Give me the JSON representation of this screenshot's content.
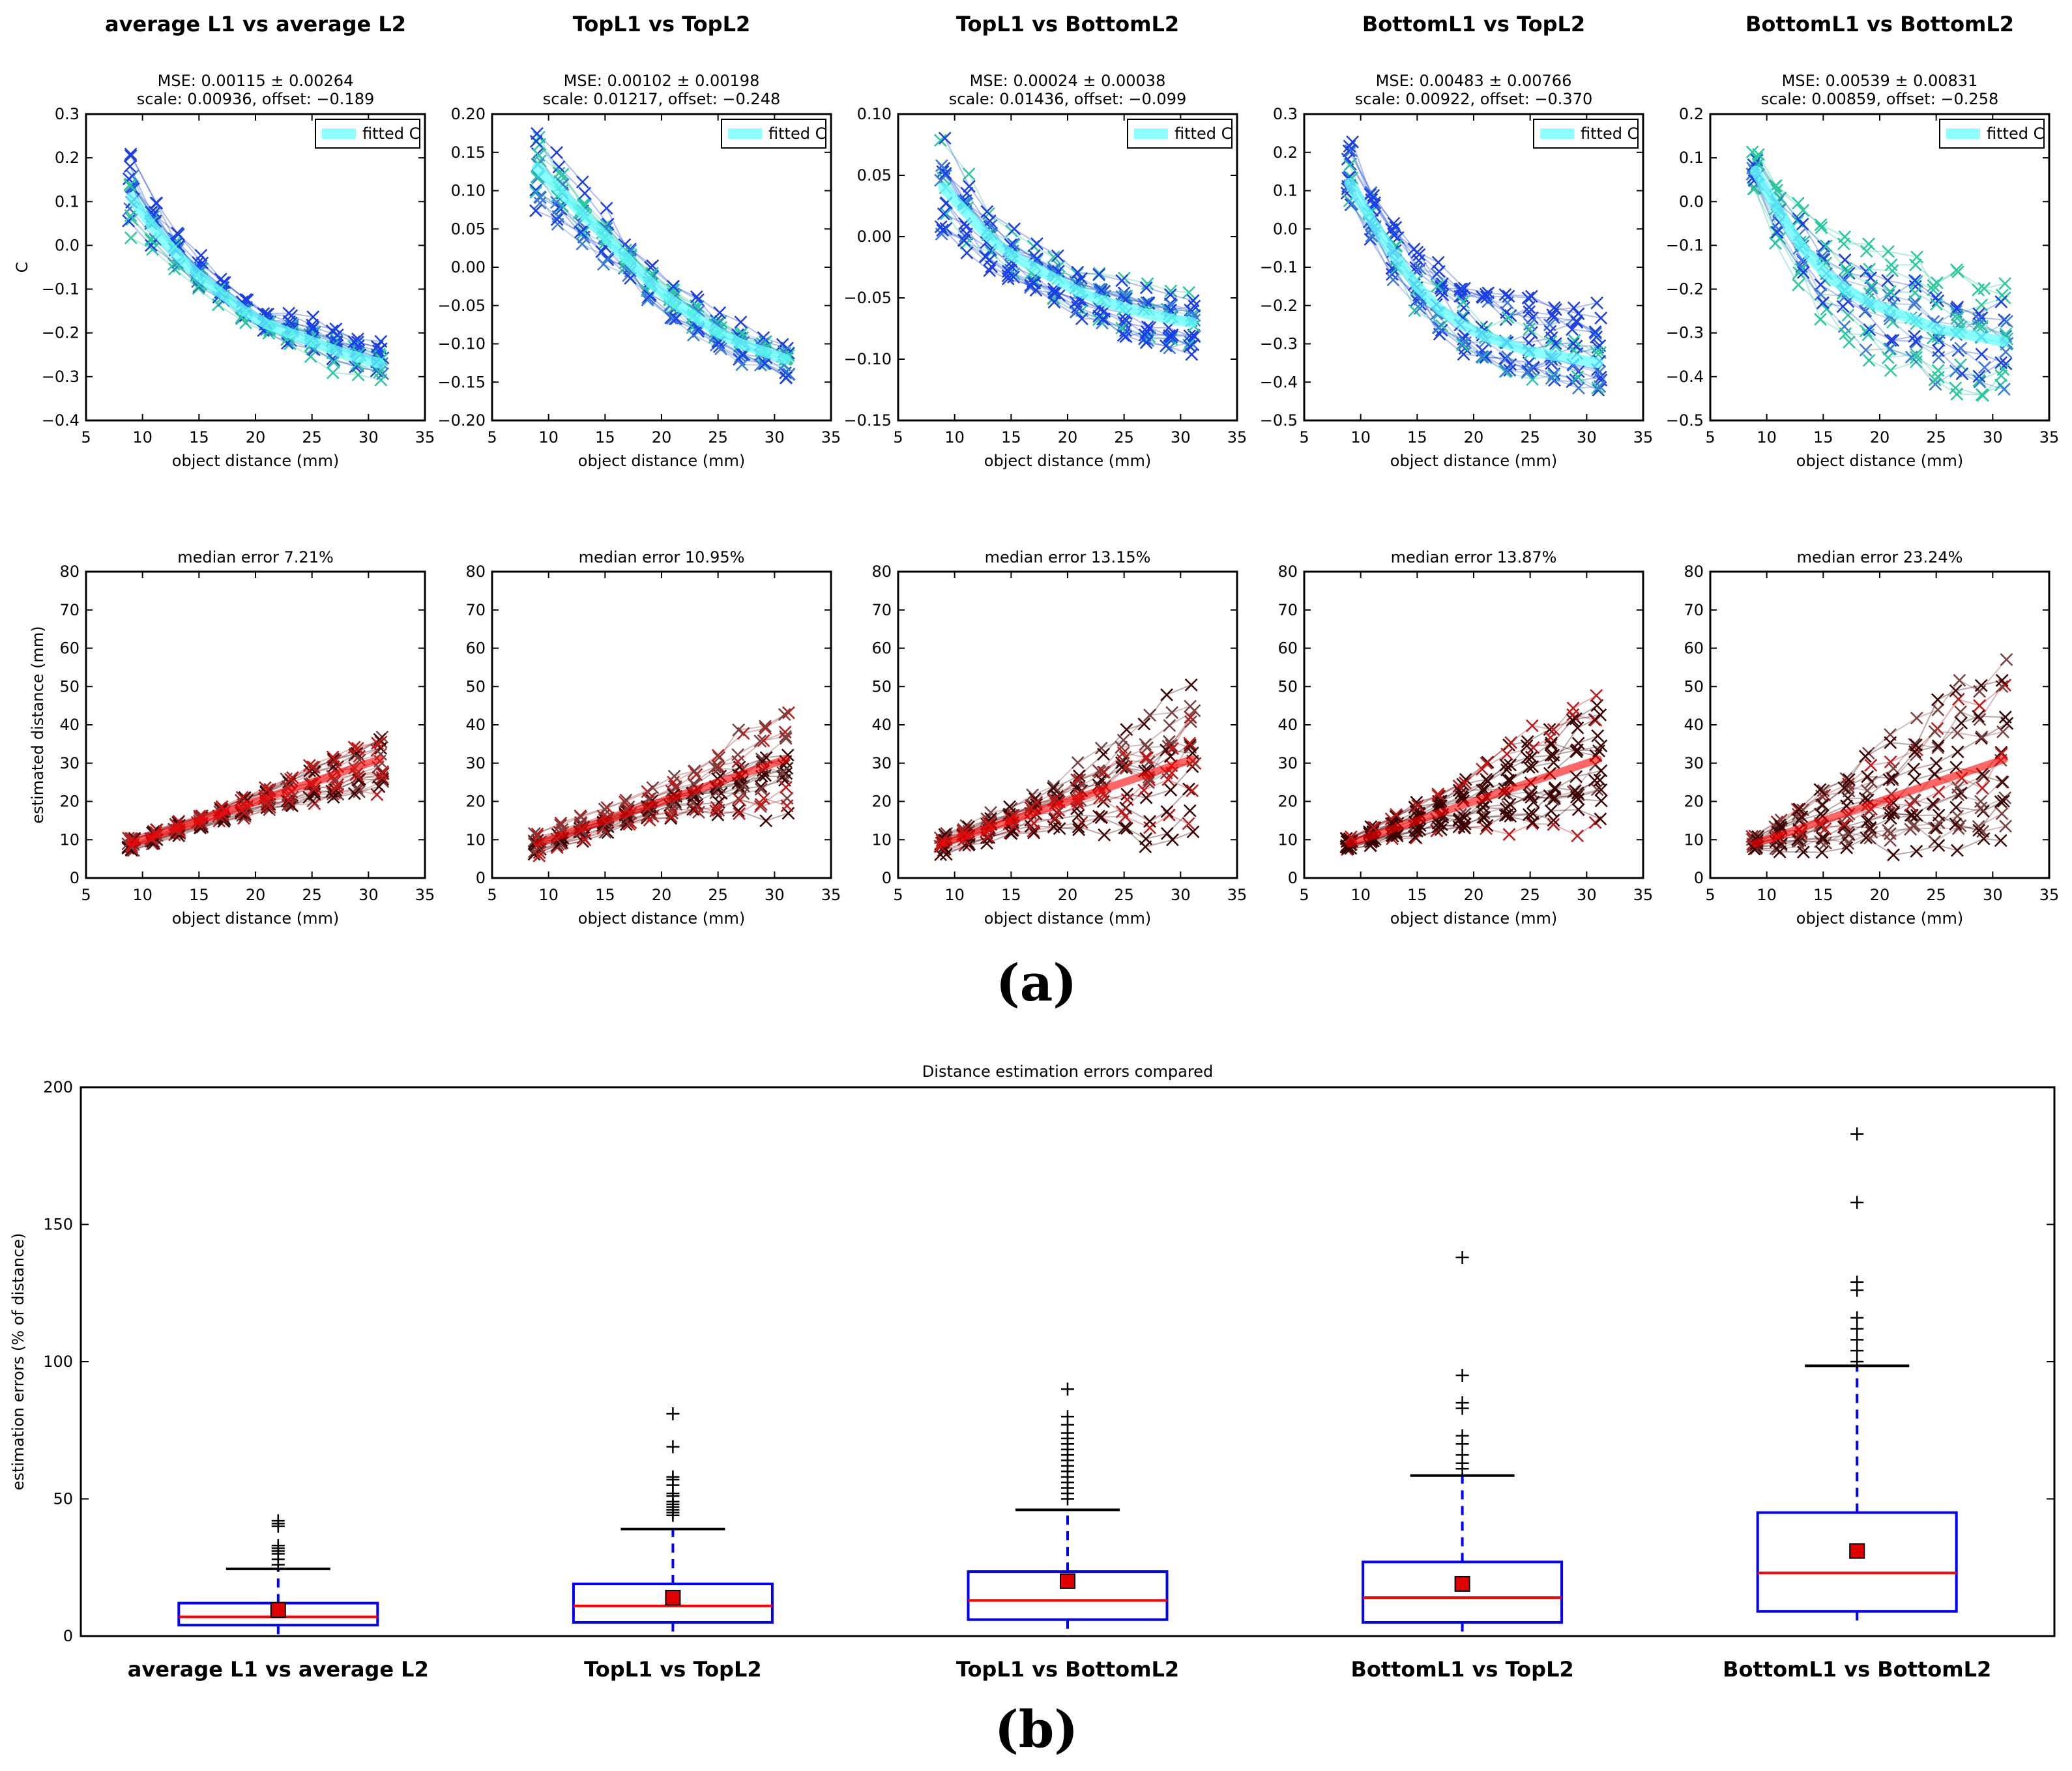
{
  "figure": {
    "panel_a_label": "(a)",
    "panel_b_label": "(b)",
    "colors": {
      "c_fit": "#66ffff",
      "blue_marker": "#1a3fe6",
      "green_marker": "#1ad98c",
      "red_line": "#ff0000",
      "dark_marker": "#3a0000",
      "box_blue": "#0000ff"
    }
  },
  "chart_data": [
    {
      "id": "c1",
      "type": "line",
      "title": "average L1 vs average L2",
      "stats": "MSE: 0.00115 ± 0.00264",
      "fit_params": "scale: 0.00936, offset: −0.189",
      "xlabel": "object distance (mm)",
      "ylabel": "C",
      "legend": "fitted C",
      "xlim": [
        5,
        35
      ],
      "ylim": [
        -0.4,
        0.3
      ],
      "xticks": [
        "5",
        "10",
        "15",
        "20",
        "25",
        "30",
        "35"
      ],
      "yticks": [
        "−0.4",
        "−0.3",
        "−0.2",
        "−0.1",
        "0.0",
        "0.1",
        "0.2",
        "0.3"
      ],
      "x": [
        9,
        11,
        13,
        15,
        17,
        19,
        21,
        23,
        25,
        27,
        29,
        31
      ],
      "fit": [
        0.11,
        0.04,
        -0.02,
        -0.07,
        -0.11,
        -0.15,
        -0.18,
        -0.2,
        -0.22,
        -0.24,
        -0.255,
        -0.27
      ],
      "spread": [
        0.1,
        0.07,
        0.05,
        0.04,
        0.03,
        0.03,
        0.03,
        0.04,
        0.05,
        0.05,
        0.05,
        0.05
      ]
    },
    {
      "id": "c2",
      "type": "line",
      "title": "TopL1 vs TopL2",
      "stats": "MSE: 0.00102 ± 0.00198",
      "fit_params": "scale: 0.01217, offset: −0.248",
      "xlabel": "object distance (mm)",
      "ylabel": "",
      "legend": "fitted C",
      "xlim": [
        5,
        35
      ],
      "ylim": [
        -0.2,
        0.2
      ],
      "xticks": [
        "5",
        "10",
        "15",
        "20",
        "25",
        "30",
        "35"
      ],
      "yticks": [
        "−0.20",
        "−0.15",
        "−0.10",
        "−0.05",
        "0.00",
        "0.05",
        "0.10",
        "0.15",
        "0.20"
      ],
      "x": [
        9,
        11,
        13,
        15,
        17,
        19,
        21,
        23,
        25,
        27,
        29,
        31
      ],
      "fit": [
        0.13,
        0.1,
        0.07,
        0.04,
        0.01,
        -0.02,
        -0.045,
        -0.065,
        -0.085,
        -0.1,
        -0.11,
        -0.12
      ],
      "spread": [
        0.07,
        0.06,
        0.05,
        0.04,
        0.03,
        0.03,
        0.03,
        0.03,
        0.03,
        0.03,
        0.03,
        0.03
      ]
    },
    {
      "id": "c3",
      "type": "line",
      "title": "TopL1 vs BottomL2",
      "stats": "MSE: 0.00024 ± 0.00038",
      "fit_params": "scale: 0.01436, offset: −0.099",
      "xlabel": "object distance (mm)",
      "ylabel": "",
      "legend": "fitted C",
      "xlim": [
        5,
        35
      ],
      "ylim": [
        -0.15,
        0.1
      ],
      "xticks": [
        "5",
        "10",
        "15",
        "20",
        "25",
        "30",
        "35"
      ],
      "yticks": [
        "−0.15",
        "−0.10",
        "−0.05",
        "0.00",
        "0.05",
        "0.10"
      ],
      "x": [
        9,
        11,
        13,
        15,
        17,
        19,
        21,
        23,
        25,
        27,
        29,
        31
      ],
      "fit": [
        0.04,
        0.02,
        0.0,
        -0.015,
        -0.025,
        -0.035,
        -0.045,
        -0.052,
        -0.058,
        -0.063,
        -0.067,
        -0.07
      ],
      "spread": [
        0.04,
        0.03,
        0.025,
        0.02,
        0.02,
        0.02,
        0.02,
        0.02,
        0.025,
        0.025,
        0.025,
        0.025
      ]
    },
    {
      "id": "c4",
      "type": "line",
      "title": "BottomL1 vs TopL2",
      "stats": "MSE: 0.00483 ± 0.00766",
      "fit_params": "scale: 0.00922, offset: −0.370",
      "xlabel": "object distance (mm)",
      "ylabel": "",
      "legend": "fitted C",
      "xlim": [
        5,
        35
      ],
      "ylim": [
        -0.5,
        0.3
      ],
      "xticks": [
        "5",
        "10",
        "15",
        "20",
        "25",
        "30",
        "35"
      ],
      "yticks": [
        "−0.5",
        "−0.4",
        "−0.3",
        "−0.2",
        "−0.1",
        "0.0",
        "0.1",
        "0.2",
        "0.3"
      ],
      "x": [
        9,
        11,
        13,
        15,
        17,
        19,
        21,
        23,
        25,
        27,
        29,
        31
      ],
      "fit": [
        0.12,
        0.02,
        -0.07,
        -0.15,
        -0.21,
        -0.25,
        -0.28,
        -0.3,
        -0.32,
        -0.33,
        -0.34,
        -0.35
      ],
      "spread": [
        0.1,
        0.09,
        0.09,
        0.1,
        0.12,
        0.12,
        0.13,
        0.13,
        0.14,
        0.14,
        0.14,
        0.14
      ]
    },
    {
      "id": "c5",
      "type": "line",
      "title": "BottomL1 vs BottomL2",
      "stats": "MSE: 0.00539 ± 0.00831",
      "fit_params": "scale: 0.00859, offset: −0.258",
      "xlabel": "object distance (mm)",
      "ylabel": "",
      "legend": "fitted C",
      "xlim": [
        5,
        35
      ],
      "ylim": [
        -0.5,
        0.2
      ],
      "xticks": [
        "5",
        "10",
        "15",
        "20",
        "25",
        "30",
        "35"
      ],
      "yticks": [
        "−0.5",
        "−0.4",
        "−0.3",
        "−0.2",
        "−0.1",
        "0.0",
        "0.1",
        "0.2"
      ],
      "x": [
        9,
        11,
        13,
        15,
        17,
        19,
        21,
        23,
        25,
        27,
        29,
        31
      ],
      "fit": [
        0.07,
        -0.02,
        -0.1,
        -0.16,
        -0.2,
        -0.23,
        -0.25,
        -0.27,
        -0.29,
        -0.3,
        -0.31,
        -0.32
      ],
      "spread": [
        0.05,
        0.08,
        0.1,
        0.12,
        0.13,
        0.14,
        0.14,
        0.15,
        0.15,
        0.15,
        0.15,
        0.15
      ]
    },
    {
      "id": "d1",
      "type": "line",
      "title": "median error 7.21%",
      "xlabel": "object distance (mm)",
      "ylabel": "estimated distance (mm)",
      "xlim": [
        5,
        35
      ],
      "ylim": [
        0,
        80
      ],
      "xticks": [
        "5",
        "10",
        "15",
        "20",
        "25",
        "30",
        "35"
      ],
      "yticks": [
        "0",
        "10",
        "20",
        "30",
        "40",
        "50",
        "60",
        "70",
        "80"
      ],
      "x": [
        9,
        11,
        13,
        15,
        17,
        19,
        21,
        23,
        25,
        27,
        29,
        31
      ],
      "fit": [
        9,
        11,
        13,
        15,
        17,
        19,
        21,
        23,
        25,
        27,
        29,
        31
      ],
      "spread": [
        2,
        2,
        2,
        2,
        2,
        3,
        3,
        4,
        5,
        6,
        7,
        8
      ]
    },
    {
      "id": "d2",
      "type": "line",
      "title": "median error 10.95%",
      "xlabel": "object distance (mm)",
      "ylabel": "",
      "xlim": [
        5,
        35
      ],
      "ylim": [
        0,
        80
      ],
      "xticks": [
        "5",
        "10",
        "15",
        "20",
        "25",
        "30",
        "35"
      ],
      "yticks": [
        "0",
        "10",
        "20",
        "30",
        "40",
        "50",
        "60",
        "70",
        "80"
      ],
      "x": [
        9,
        11,
        13,
        15,
        17,
        19,
        21,
        23,
        25,
        27,
        29,
        31
      ],
      "fit": [
        9,
        11,
        13,
        15,
        17,
        19,
        21,
        23,
        25,
        27,
        29,
        31
      ],
      "spread": [
        3,
        3,
        3,
        3,
        3,
        4,
        5,
        6,
        8,
        10,
        12,
        12
      ]
    },
    {
      "id": "d3",
      "type": "line",
      "title": "median error 13.15%",
      "xlabel": "object distance (mm)",
      "ylabel": "",
      "xlim": [
        5,
        35
      ],
      "ylim": [
        0,
        80
      ],
      "xticks": [
        "5",
        "10",
        "15",
        "20",
        "25",
        "30",
        "35"
      ],
      "yticks": [
        "0",
        "10",
        "20",
        "30",
        "40",
        "50",
        "60",
        "70",
        "80"
      ],
      "x": [
        9,
        11,
        13,
        15,
        17,
        19,
        21,
        23,
        25,
        27,
        29,
        31
      ],
      "fit": [
        9,
        11,
        13,
        15,
        17,
        19,
        21,
        23,
        25,
        27,
        29,
        31
      ],
      "spread": [
        3,
        3,
        4,
        4,
        5,
        7,
        9,
        12,
        16,
        18,
        20,
        20
      ]
    },
    {
      "id": "d4",
      "type": "line",
      "title": "median error 13.87%",
      "xlabel": "object distance (mm)",
      "ylabel": "",
      "xlim": [
        5,
        35
      ],
      "ylim": [
        0,
        80
      ],
      "xticks": [
        "5",
        "10",
        "15",
        "20",
        "25",
        "30",
        "35"
      ],
      "yticks": [
        "0",
        "10",
        "20",
        "30",
        "40",
        "50",
        "60",
        "70",
        "80"
      ],
      "x": [
        9,
        11,
        13,
        15,
        17,
        19,
        21,
        23,
        25,
        27,
        29,
        31
      ],
      "fit": [
        9,
        11,
        13,
        15,
        17,
        19,
        21,
        23,
        25,
        27,
        29,
        31
      ],
      "spread": [
        2,
        3,
        4,
        5,
        6,
        8,
        10,
        12,
        14,
        16,
        18,
        20
      ]
    },
    {
      "id": "d5",
      "type": "line",
      "title": "median error 23.24%",
      "xlabel": "object distance (mm)",
      "ylabel": "",
      "xlim": [
        5,
        35
      ],
      "ylim": [
        0,
        80
      ],
      "xticks": [
        "5",
        "10",
        "15",
        "20",
        "25",
        "30",
        "35"
      ],
      "yticks": [
        "0",
        "10",
        "20",
        "30",
        "40",
        "50",
        "60",
        "70",
        "80"
      ],
      "x": [
        9,
        11,
        13,
        15,
        17,
        19,
        21,
        23,
        25,
        27,
        29,
        31
      ],
      "fit": [
        9,
        11,
        13,
        15,
        17,
        19,
        21,
        23,
        25,
        27,
        29,
        31
      ],
      "spread": [
        2,
        4,
        6,
        8,
        10,
        12,
        14,
        16,
        20,
        22,
        24,
        24
      ]
    },
    {
      "id": "box",
      "type": "box",
      "title": "Distance estimation errors compared",
      "xlabel": "",
      "ylabel": "estimation errors (% of distance)",
      "ylim": [
        0,
        200
      ],
      "yticks": [
        "0",
        "50",
        "100",
        "150",
        "200"
      ],
      "categories": [
        "average L1 vs average L2",
        "TopL1 vs TopL2",
        "TopL1 vs BottomL2",
        "BottomL1 vs TopL2",
        "BottomL1 vs BottomL2"
      ],
      "boxes": [
        {
          "q1": 4,
          "median": 7,
          "q3": 12,
          "mean": 9.5,
          "whisker_low": 0,
          "whisker_high": 24.5,
          "outliers": [
            26,
            28,
            30,
            31,
            32,
            33,
            40,
            41,
            42
          ]
        },
        {
          "q1": 5,
          "median": 11,
          "q3": 19,
          "mean": 14,
          "whisker_low": 0,
          "whisker_high": 39,
          "outliers": [
            44,
            45,
            46,
            47,
            48,
            49,
            51,
            52,
            55,
            57,
            58,
            69,
            81
          ]
        },
        {
          "q1": 6,
          "median": 13,
          "q3": 23.5,
          "mean": 20,
          "whisker_low": 0,
          "whisker_high": 46,
          "outliers": [
            50,
            52,
            54,
            56,
            58,
            60,
            62,
            64,
            66,
            68,
            70,
            72,
            74,
            77,
            80,
            90
          ]
        },
        {
          "q1": 5,
          "median": 14,
          "q3": 27,
          "mean": 19,
          "whisker_low": 0,
          "whisker_high": 58.5,
          "outliers": [
            61,
            63,
            66,
            70,
            73,
            83,
            85,
            95,
            138
          ]
        },
        {
          "q1": 9,
          "median": 23,
          "q3": 45,
          "mean": 31,
          "whisker_low": 5,
          "whisker_high": 98.5,
          "outliers": [
            100,
            104,
            108,
            112,
            116,
            126,
            129,
            158,
            183
          ]
        }
      ]
    }
  ]
}
